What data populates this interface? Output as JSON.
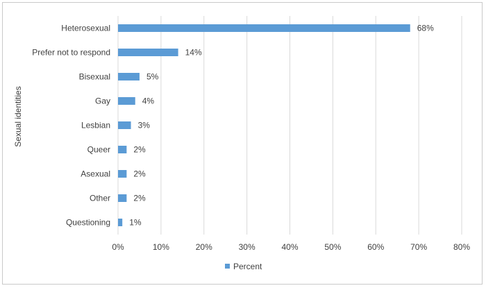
{
  "chart_data": {
    "type": "bar",
    "orientation": "horizontal",
    "title": "",
    "xlabel": "",
    "ylabel": "Sexual identities",
    "categories": [
      "Heterosexual",
      "Prefer not to respond",
      "Bisexual",
      "Gay",
      "Lesbian",
      "Queer",
      "Asexual",
      "Other",
      "Questioning"
    ],
    "series": [
      {
        "name": "Percent",
        "values": [
          68,
          14,
          5,
          4,
          3,
          2,
          2,
          2,
          1
        ],
        "labels": [
          "68%",
          "14%",
          "5%",
          "4%",
          "3%",
          "2%",
          "2%",
          "2%",
          "1%"
        ],
        "color": "#5b9bd5"
      }
    ],
    "xlim": [
      0,
      80
    ],
    "x_ticks": [
      "0%",
      "10%",
      "20%",
      "30%",
      "40%",
      "50%",
      "60%",
      "70%",
      "80%"
    ],
    "grid": "vertical",
    "legend": "bottom"
  }
}
